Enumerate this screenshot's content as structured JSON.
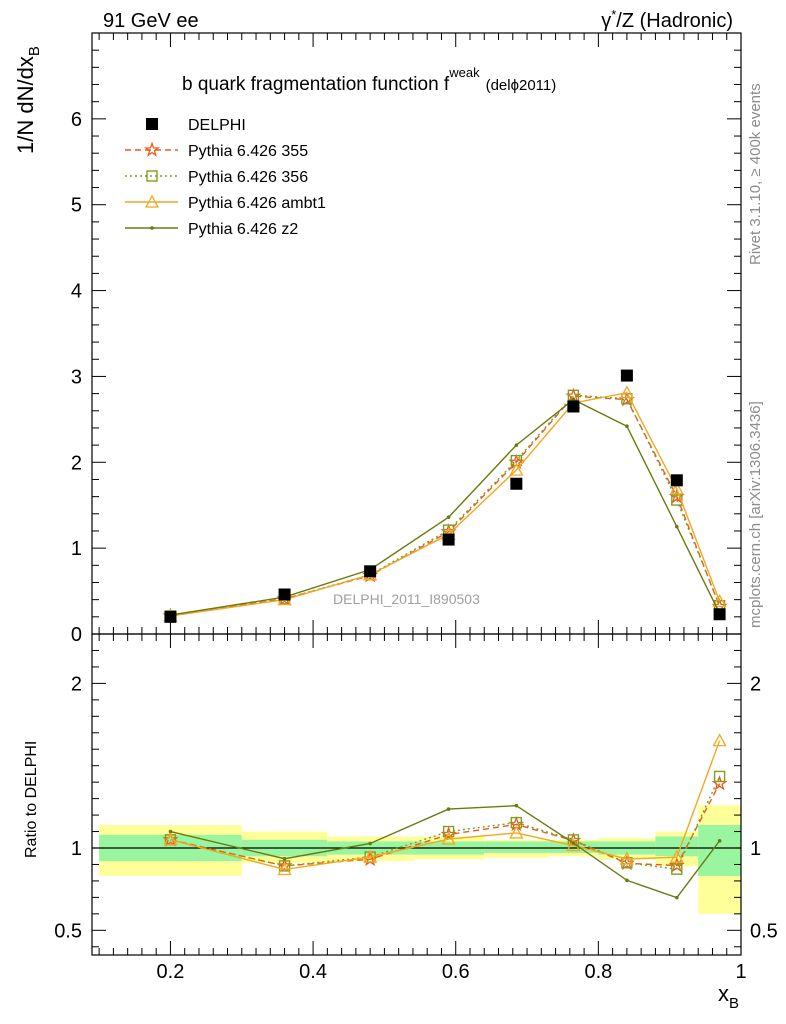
{
  "header": {
    "left": "91 GeV ee",
    "right_sup": "*",
    "right_gamma": "γ",
    "right_rest": "/Z (Hadronic)"
  },
  "title": {
    "main": "b quark fragmentation function f",
    "sup": "weak",
    "tag": "(delϕ2011)"
  },
  "side_labels": {
    "rivet": "Rivet 3.1.10, ≥ 400k events",
    "mcplots": "mcplots.cern.ch [arXiv:1306.3436]"
  },
  "watermark": "DELPHI_2011_I890503",
  "ratio_ylabel": "Ratio to DELPHI",
  "colors": {
    "delphi": "#000000",
    "p355": "#ee5a1e",
    "p356": "#7ca01e",
    "ambt1": "#f5a623",
    "z2": "#6b7a10",
    "band_inner": "#99f5a0",
    "band_outer": "#ffff99"
  },
  "chart_data": {
    "type": "line",
    "xlabel_main": "x",
    "xlabel_sub": "B",
    "ylabel_main": "1/N dN/dx",
    "ylabel_sub": "B",
    "xlim": [
      0.09,
      1.0
    ],
    "ylim_main": [
      0,
      7
    ],
    "ylim_ratio": [
      0.35,
      2.3
    ],
    "xticks": [
      0.2,
      0.4,
      0.6,
      0.8,
      1
    ],
    "xtick_labels": [
      "0.2",
      "0.4",
      "0.6",
      "0.8",
      "1"
    ],
    "yticks_main": [
      0,
      1,
      2,
      3,
      4,
      5,
      6
    ],
    "ytick_labels_main": [
      "0",
      "1",
      "2",
      "3",
      "4",
      "5",
      "6"
    ],
    "yticks_ratio": [
      0.5,
      1,
      2
    ],
    "ytick_labels_ratio": [
      "0.5",
      "1",
      "2"
    ],
    "x": [
      0.2,
      0.36,
      0.48,
      0.59,
      0.685,
      0.765,
      0.84,
      0.91,
      0.97
    ],
    "bins": [
      [
        0.1,
        0.3
      ],
      [
        0.3,
        0.42
      ],
      [
        0.42,
        0.54
      ],
      [
        0.54,
        0.64
      ],
      [
        0.64,
        0.73
      ],
      [
        0.73,
        0.8
      ],
      [
        0.8,
        0.88
      ],
      [
        0.88,
        0.94
      ],
      [
        0.94,
        1.0
      ]
    ],
    "series": [
      {
        "name": "DELPHI",
        "key": "delphi",
        "marker": "square",
        "values": [
          0.2,
          0.46,
          0.73,
          1.1,
          1.75,
          2.65,
          3.01,
          1.79,
          0.23
        ]
      },
      {
        "name": "Pythia 6.426 355",
        "key": "p355",
        "marker": "star",
        "dash": "6,4",
        "values": [
          0.21,
          0.41,
          0.68,
          1.19,
          2.0,
          2.77,
          2.73,
          1.6,
          0.32
        ]
      },
      {
        "name": "Pythia 6.426 356",
        "key": "p356",
        "marker": "open-square",
        "dash": "2,3",
        "values": [
          0.21,
          0.41,
          0.69,
          1.21,
          2.02,
          2.78,
          2.74,
          1.56,
          0.33
        ]
      },
      {
        "name": "Pythia 6.426 ambt1",
        "key": "ambt1",
        "marker": "triangle",
        "values": [
          0.21,
          0.4,
          0.69,
          1.16,
          1.91,
          2.69,
          2.81,
          1.69,
          0.38
        ]
      },
      {
        "name": "Pythia 6.426 z2",
        "key": "z2",
        "marker": "dot",
        "values": [
          0.22,
          0.43,
          0.75,
          1.36,
          2.2,
          2.73,
          2.42,
          1.25,
          0.24
        ]
      }
    ],
    "ratio_band": {
      "inner": [
        [
          0.92,
          1.08
        ],
        [
          0.95,
          1.05
        ],
        [
          0.96,
          1.04
        ],
        [
          0.96,
          1.04
        ],
        [
          0.97,
          1.04
        ],
        [
          0.97,
          1.04
        ],
        [
          0.96,
          1.04
        ],
        [
          0.95,
          1.07
        ],
        [
          0.83,
          1.14
        ]
      ],
      "outer": [
        [
          0.83,
          1.14
        ],
        [
          0.91,
          1.1
        ],
        [
          0.92,
          1.07
        ],
        [
          0.93,
          1.07
        ],
        [
          0.94,
          1.05
        ],
        [
          0.95,
          1.05
        ],
        [
          0.93,
          1.06
        ],
        [
          0.89,
          1.1
        ],
        [
          0.6,
          1.26
        ]
      ]
    },
    "legend_position": "top-left",
    "grid": false
  }
}
